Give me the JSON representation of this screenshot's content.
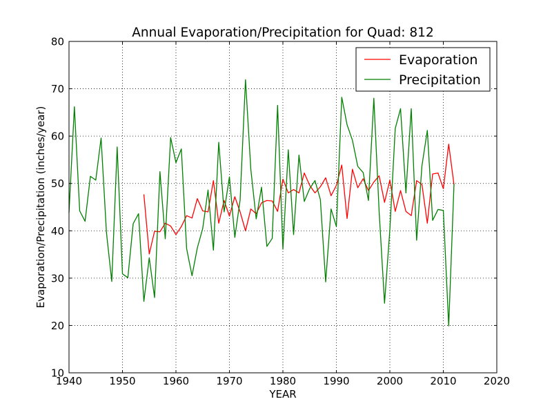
{
  "chart_data": {
    "type": "line",
    "title": "Annual Evaporation/Precipitation for Quad: 812",
    "xlabel": "YEAR",
    "ylabel": "Evaporation/Precipitation (inches/year)",
    "xlim": [
      1940,
      2020
    ],
    "ylim": [
      10,
      80
    ],
    "xticks": [
      1940,
      1950,
      1960,
      1970,
      1980,
      1990,
      2000,
      2010,
      2020
    ],
    "yticks": [
      10,
      20,
      30,
      40,
      50,
      60,
      70,
      80
    ],
    "grid": true,
    "legend_position": "top-right",
    "series": [
      {
        "name": "Evaporation",
        "color": "#ff0000",
        "x": [
          1954,
          1955,
          1956,
          1957,
          1958,
          1959,
          1960,
          1961,
          1962,
          1963,
          1964,
          1965,
          1966,
          1967,
          1968,
          1969,
          1970,
          1971,
          1972,
          1973,
          1974,
          1975,
          1976,
          1977,
          1978,
          1979,
          1980,
          1981,
          1982,
          1983,
          1984,
          1985,
          1986,
          1987,
          1988,
          1989,
          1990,
          1991,
          1992,
          1993,
          1994,
          1995,
          1996,
          1997,
          1998,
          1999,
          2000,
          2001,
          2002,
          2003,
          2004,
          2005,
          2006,
          2007,
          2008,
          2009,
          2010,
          2011,
          2012
        ],
        "values": [
          47.7,
          35.1,
          39.9,
          39.8,
          41.6,
          41.0,
          39.2,
          40.9,
          43.2,
          42.7,
          46.8,
          44.2,
          44.0,
          50.6,
          41.6,
          46.4,
          43.1,
          47.2,
          44.0,
          40.0,
          44.6,
          43.6,
          45.9,
          46.4,
          46.3,
          44.1,
          50.9,
          48.0,
          48.7,
          48.0,
          52.2,
          49.6,
          48.0,
          49.3,
          51.2,
          47.4,
          49.6,
          53.9,
          42.6,
          53.0,
          49.1,
          51.0,
          48.5,
          50.3,
          51.6,
          46.0,
          50.7,
          44.1,
          48.5,
          44.1,
          43.2,
          50.6,
          49.8,
          41.6,
          52.0,
          52.2,
          48.9,
          58.3,
          49.7
        ]
      },
      {
        "name": "Precipitation",
        "color": "#007f00",
        "x": [
          1940,
          1941,
          1942,
          1943,
          1944,
          1945,
          1946,
          1947,
          1948,
          1949,
          1950,
          1951,
          1952,
          1953,
          1954,
          1955,
          1956,
          1957,
          1958,
          1959,
          1960,
          1961,
          1962,
          1963,
          1964,
          1965,
          1966,
          1967,
          1968,
          1969,
          1970,
          1971,
          1972,
          1973,
          1974,
          1975,
          1976,
          1977,
          1978,
          1979,
          1980,
          1981,
          1982,
          1983,
          1984,
          1985,
          1986,
          1987,
          1988,
          1989,
          1990,
          1991,
          1992,
          1993,
          1994,
          1995,
          1996,
          1997,
          1998,
          1999,
          2000,
          2001,
          2002,
          2003,
          2004,
          2005,
          2006,
          2007,
          2008,
          2009,
          2010,
          2011,
          2012
        ],
        "values": [
          43.8,
          66.2,
          44.2,
          42.0,
          51.5,
          50.7,
          59.6,
          39.6,
          29.3,
          57.7,
          30.9,
          30.1,
          41.5,
          43.6,
          25.1,
          34.3,
          25.9,
          52.5,
          38.3,
          59.7,
          54.4,
          57.3,
          36.2,
          30.5,
          36.4,
          40.5,
          48.6,
          35.9,
          58.7,
          44.0,
          51.4,
          38.6,
          46.5,
          71.9,
          53.0,
          42.5,
          49.2,
          36.7,
          38.4,
          66.5,
          36.1,
          57.1,
          39.2,
          56.0,
          46.2,
          48.9,
          50.6,
          46.6,
          29.2,
          44.6,
          40.9,
          68.2,
          62.4,
          59.1,
          53.6,
          52.3,
          46.4,
          68.0,
          44.0,
          24.7,
          40.2,
          61.6,
          65.8,
          48.0,
          65.8,
          38.0,
          53.7,
          61.2,
          42.2,
          44.5,
          44.3,
          19.9,
          49.9
        ]
      }
    ]
  }
}
